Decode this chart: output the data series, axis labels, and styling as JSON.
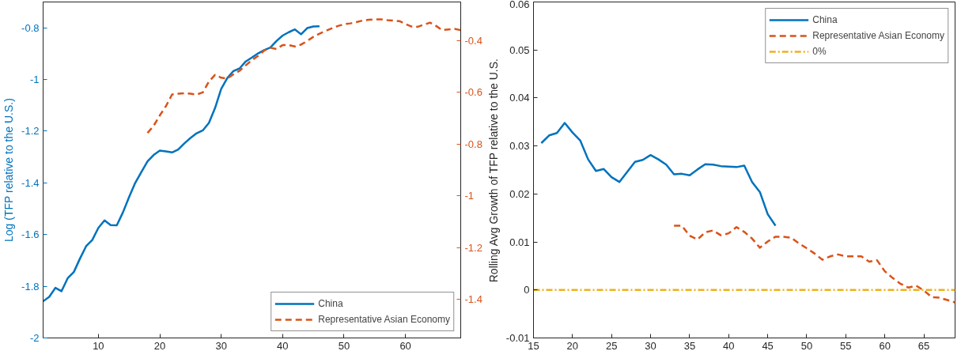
{
  "chart_data": [
    {
      "type": "line",
      "ylabel": "Log (TFP relative to the U.S.)",
      "xlim": [
        1,
        69
      ],
      "xticks": [
        10,
        20,
        30,
        40,
        50,
        60
      ],
      "ylim": [
        -2,
        -0.7
      ],
      "yticks": [
        -2,
        -1.8,
        -1.6,
        -1.4,
        -1.2,
        -1,
        -0.8
      ],
      "y2lim": [
        -1.55,
        -0.25
      ],
      "y2ticks": [
        -1.4,
        -1.2,
        -1,
        -0.8,
        -0.6,
        -0.4
      ],
      "grid": false,
      "legend": "bottom right",
      "series": [
        {
          "name": "China",
          "color": "#0072bd",
          "line_style": "solid",
          "x": [
            1,
            2,
            3,
            4,
            5,
            6,
            7,
            8,
            9,
            10,
            11,
            12,
            13,
            14,
            15,
            16,
            17,
            18,
            19,
            20,
            21,
            22,
            23,
            24,
            25,
            26,
            27,
            28,
            29,
            30,
            31,
            32,
            33,
            34,
            35,
            36,
            37,
            38,
            39,
            40,
            41,
            42,
            43,
            44,
            45,
            46
          ],
          "values": [
            -1.858,
            -1.841,
            -1.806,
            -1.819,
            -1.769,
            -1.745,
            -1.693,
            -1.645,
            -1.621,
            -1.574,
            -1.545,
            -1.563,
            -1.564,
            -1.514,
            -1.455,
            -1.4,
            -1.358,
            -1.317,
            -1.292,
            -1.275,
            -1.278,
            -1.282,
            -1.271,
            -1.247,
            -1.226,
            -1.208,
            -1.197,
            -1.168,
            -1.11,
            -1.036,
            -0.994,
            -0.967,
            -0.957,
            -0.93,
            -0.915,
            -0.899,
            -0.886,
            -0.876,
            -0.851,
            -0.83,
            -0.817,
            -0.806,
            -0.825,
            -0.801,
            -0.795,
            -0.794
          ]
        },
        {
          "name": "Representative Asian Economy",
          "color": "#d95319",
          "line_style": "dashed",
          "axis": "y2",
          "x": [
            18,
            19,
            20,
            21,
            22,
            23,
            24,
            25,
            26,
            27,
            28,
            29,
            30,
            31,
            32,
            33,
            34,
            35,
            36,
            37,
            38,
            39,
            40,
            41,
            42,
            43,
            44,
            45,
            46,
            47,
            48,
            49,
            50,
            51,
            52,
            53,
            54,
            55,
            56,
            57,
            58,
            59,
            60,
            61,
            62,
            63,
            64,
            65,
            66,
            67,
            68,
            69
          ],
          "values": [
            -0.757,
            -0.729,
            -0.689,
            -0.653,
            -0.608,
            -0.605,
            -0.603,
            -0.605,
            -0.608,
            -0.6,
            -0.558,
            -0.532,
            -0.543,
            -0.546,
            -0.53,
            -0.516,
            -0.495,
            -0.475,
            -0.459,
            -0.438,
            -0.427,
            -0.432,
            -0.417,
            -0.417,
            -0.422,
            -0.415,
            -0.401,
            -0.385,
            -0.373,
            -0.362,
            -0.352,
            -0.343,
            -0.336,
            -0.333,
            -0.328,
            -0.322,
            -0.319,
            -0.317,
            -0.317,
            -0.32,
            -0.322,
            -0.324,
            -0.335,
            -0.345,
            -0.346,
            -0.338,
            -0.33,
            -0.343,
            -0.359,
            -0.356,
            -0.354,
            -0.359
          ]
        }
      ]
    },
    {
      "type": "line",
      "ylabel": "Rolling Avg Growth of TFP relative to the U.S.",
      "xlim": [
        15,
        69
      ],
      "xticks": [
        15,
        20,
        25,
        30,
        35,
        40,
        45,
        50,
        55,
        60,
        65
      ],
      "ylim": [
        -0.01,
        0.06
      ],
      "yticks": [
        -0.01,
        0,
        0.01,
        0.02,
        0.03,
        0.04,
        0.05,
        0.06
      ],
      "grid": false,
      "legend": "top right",
      "series": [
        {
          "name": "China",
          "color": "#0072bd",
          "line_style": "solid",
          "x": [
            16,
            17,
            18,
            19,
            20,
            21,
            22,
            23,
            24,
            25,
            26,
            27,
            28,
            29,
            30,
            31,
            32,
            33,
            34,
            35,
            36,
            37,
            38,
            39,
            40,
            41,
            42,
            43,
            44,
            45,
            46
          ],
          "values": [
            0.0306,
            0.0322,
            0.0327,
            0.0348,
            0.0328,
            0.0311,
            0.0272,
            0.0248,
            0.0252,
            0.0235,
            0.0225,
            0.0246,
            0.0267,
            0.0271,
            0.0281,
            0.0272,
            0.0261,
            0.0241,
            0.0242,
            0.0239,
            0.0251,
            0.0262,
            0.0261,
            0.0258,
            0.0257,
            0.0256,
            0.0259,
            0.0225,
            0.0204,
            0.0158,
            0.0134
          ]
        },
        {
          "name": "Representative Asian Economy",
          "color": "#d95319",
          "line_style": "dashed",
          "x": [
            33,
            34,
            35,
            36,
            37,
            38,
            39,
            40,
            41,
            42,
            43,
            44,
            45,
            46,
            47,
            48,
            49,
            50,
            51,
            52,
            53,
            54,
            55,
            56,
            57,
            58,
            59,
            60,
            61,
            62,
            63,
            64,
            65,
            66,
            67,
            68,
            69
          ],
          "values": [
            0.0134,
            0.0134,
            0.0113,
            0.0105,
            0.012,
            0.0124,
            0.0114,
            0.0118,
            0.0131,
            0.0121,
            0.0107,
            0.0088,
            0.0101,
            0.0111,
            0.0111,
            0.0109,
            0.0097,
            0.0087,
            0.0076,
            0.0063,
            0.007,
            0.0074,
            0.007,
            0.007,
            0.007,
            0.0059,
            0.0062,
            0.0039,
            0.0025,
            0.0013,
            0.0005,
            0.0009,
            -0.0001,
            -0.0015,
            -0.0016,
            -0.0021,
            -0.0026
          ]
        }
      ],
      "ref_lines": [
        {
          "axis": "y",
          "value": 0,
          "label": "0%",
          "color": "#edb120",
          "line_style": "dashdot"
        }
      ]
    }
  ]
}
